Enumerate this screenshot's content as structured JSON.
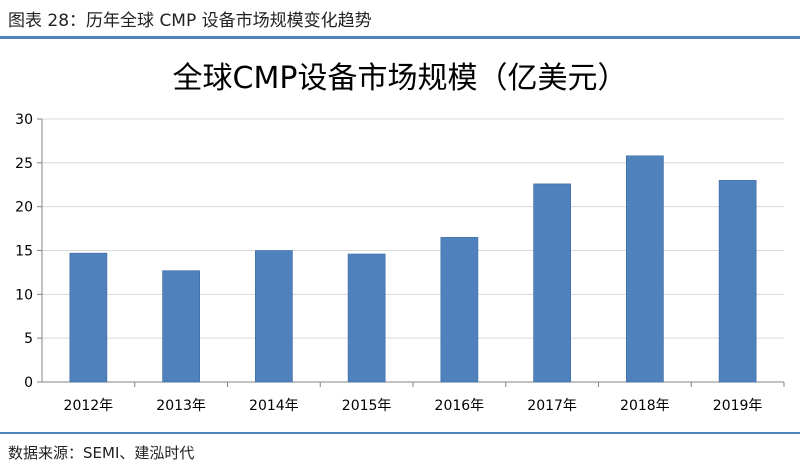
{
  "figure": {
    "caption": "图表 28：历年全球 CMP 设备市场规模变化趋势",
    "source": "数据来源：SEMI、建泓时代"
  },
  "colors": {
    "bar": "#4f81bd",
    "rule": "#4f81bd",
    "grid": "#d9d9d9",
    "axis": "#868686"
  },
  "chart_data": {
    "type": "bar",
    "title": "全球CMP设备市场规模（亿美元）",
    "xlabel": "",
    "ylabel": "",
    "categories": [
      "2012年",
      "2013年",
      "2014年",
      "2015年",
      "2016年",
      "2017年",
      "2018年",
      "2019年"
    ],
    "values": [
      14.7,
      12.7,
      15.0,
      14.6,
      16.5,
      22.6,
      25.8,
      23.0
    ],
    "ylim": [
      0,
      30
    ],
    "yticks": [
      0,
      5,
      10,
      15,
      20,
      25,
      30
    ],
    "grid": true,
    "legend": "none"
  }
}
